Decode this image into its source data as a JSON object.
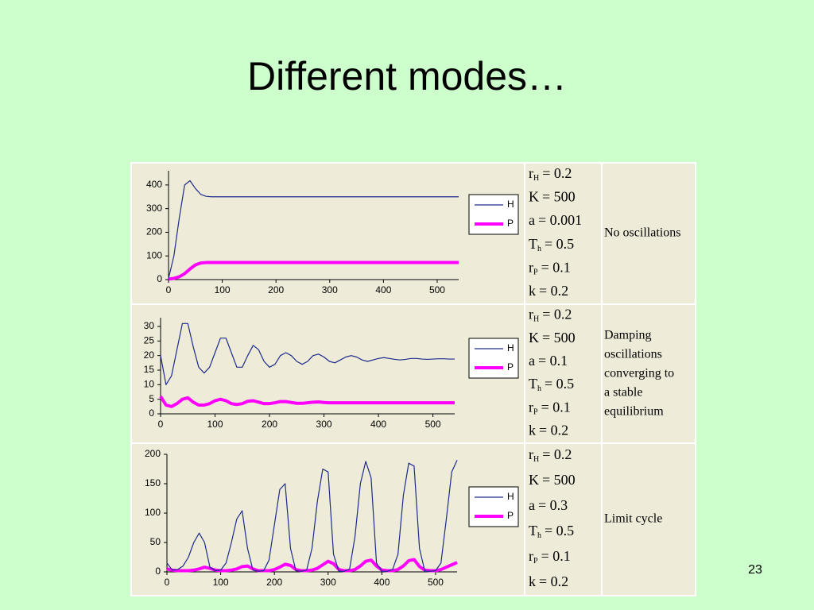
{
  "title": "Different modes…",
  "page_number": "23",
  "chart_data": [
    {
      "type": "line",
      "x": [
        0,
        10,
        20,
        30,
        40,
        50,
        60,
        70,
        80,
        90,
        100,
        110,
        120,
        130,
        140,
        150,
        160,
        170,
        180,
        190,
        200,
        210,
        220,
        230,
        240,
        250,
        260,
        270,
        280,
        290,
        300,
        310,
        320,
        330,
        340,
        350,
        360,
        370,
        380,
        390,
        400,
        410,
        420,
        430,
        440,
        450,
        460,
        470,
        480,
        490,
        500,
        510,
        520,
        530,
        540
      ],
      "xlim": [
        0,
        540
      ],
      "xticks": [
        0,
        100,
        200,
        300,
        400,
        500
      ],
      "ylim": [
        0,
        460
      ],
      "yticks": [
        0,
        100,
        200,
        300,
        400
      ],
      "series": [
        {
          "name": "H",
          "color": "#1c2a8c",
          "values": [
            5,
            100,
            260,
            400,
            418,
            385,
            360,
            352,
            350,
            350,
            350,
            350,
            350,
            350,
            350,
            350,
            350,
            350,
            350,
            350,
            350,
            350,
            350,
            350,
            350,
            350,
            350,
            350,
            350,
            350,
            350,
            350,
            350,
            350,
            350,
            350,
            350,
            350,
            350,
            350,
            350,
            350,
            350,
            350,
            350,
            350,
            350,
            350,
            350,
            350,
            350,
            350,
            350,
            350,
            350
          ]
        },
        {
          "name": "P",
          "color": "#ff00ff",
          "values": [
            2,
            5,
            12,
            25,
            45,
            62,
            70,
            72,
            72,
            72,
            72,
            72,
            72,
            72,
            72,
            72,
            72,
            72,
            72,
            72,
            72,
            72,
            72,
            72,
            72,
            72,
            72,
            72,
            72,
            72,
            72,
            72,
            72,
            72,
            72,
            72,
            72,
            72,
            72,
            72,
            72,
            72,
            72,
            72,
            72,
            72,
            72,
            72,
            72,
            72,
            72,
            72,
            72,
            72,
            72
          ]
        }
      ]
    },
    {
      "type": "line",
      "x": [
        0,
        10,
        20,
        30,
        40,
        50,
        60,
        70,
        80,
        90,
        100,
        110,
        120,
        130,
        140,
        150,
        160,
        170,
        180,
        190,
        200,
        210,
        220,
        230,
        240,
        250,
        260,
        270,
        280,
        290,
        300,
        310,
        320,
        330,
        340,
        350,
        360,
        370,
        380,
        390,
        400,
        410,
        420,
        430,
        440,
        450,
        460,
        470,
        480,
        490,
        500,
        510,
        520,
        530,
        540
      ],
      "xlim": [
        0,
        540
      ],
      "xticks": [
        0,
        100,
        200,
        300,
        400,
        500
      ],
      "ylim": [
        0,
        33
      ],
      "yticks": [
        0,
        5,
        10,
        15,
        20,
        25,
        30
      ],
      "series": [
        {
          "name": "H",
          "color": "#1c2a8c",
          "values": [
            20,
            10,
            13,
            22,
            31,
            31,
            23,
            16,
            14,
            16,
            21,
            26,
            26,
            21,
            16,
            16,
            20,
            23.5,
            22,
            18,
            16,
            17,
            20,
            21,
            20,
            18,
            17,
            18,
            20,
            20.5,
            19.5,
            18,
            17.5,
            18.5,
            19.5,
            20,
            19.5,
            18.5,
            18,
            18.5,
            19,
            19.3,
            19,
            18.7,
            18.5,
            18.7,
            19,
            19,
            18.8,
            18.7,
            18.8,
            18.9,
            18.9,
            18.8,
            18.8
          ]
        },
        {
          "name": "P",
          "color": "#ff00ff",
          "values": [
            6,
            3,
            2.5,
            3.5,
            5,
            5.5,
            4,
            3,
            3,
            3.5,
            4.5,
            5,
            4.5,
            3.5,
            3.2,
            3.5,
            4.3,
            4.5,
            4,
            3.5,
            3.5,
            3.8,
            4.2,
            4.2,
            3.9,
            3.6,
            3.6,
            3.8,
            4,
            4.1,
            3.9,
            3.8,
            3.8,
            3.8,
            3.8,
            3.8,
            3.8,
            3.8,
            3.8,
            3.8,
            3.8,
            3.8,
            3.8,
            3.8,
            3.8,
            3.8,
            3.8,
            3.8,
            3.8,
            3.8,
            3.8,
            3.8,
            3.8,
            3.8,
            3.8
          ]
        }
      ]
    },
    {
      "type": "line",
      "x": [
        0,
        10,
        20,
        30,
        40,
        50,
        60,
        70,
        80,
        90,
        100,
        110,
        120,
        130,
        140,
        150,
        160,
        170,
        180,
        190,
        200,
        210,
        220,
        230,
        240,
        250,
        260,
        270,
        280,
        290,
        300,
        310,
        320,
        330,
        340,
        350,
        360,
        370,
        380,
        390,
        400,
        410,
        420,
        430,
        440,
        450,
        460,
        470,
        480,
        490,
        500,
        510,
        520,
        530,
        540
      ],
      "xlim": [
        0,
        540
      ],
      "xticks": [
        0,
        100,
        200,
        300,
        400,
        500
      ],
      "ylim": [
        0,
        200
      ],
      "yticks": [
        0,
        50,
        100,
        150,
        200
      ],
      "series": [
        {
          "name": "H",
          "color": "#1c2a8c",
          "values": [
            15,
            3,
            4,
            10,
            25,
            50,
            66,
            50,
            8,
            2,
            3,
            15,
            50,
            90,
            104,
            40,
            3,
            1,
            2,
            20,
            80,
            140,
            150,
            40,
            2,
            1,
            3,
            40,
            120,
            175,
            170,
            30,
            1,
            1,
            5,
            60,
            150,
            188,
            160,
            15,
            1,
            1,
            4,
            30,
            130,
            185,
            180,
            40,
            1,
            1,
            2,
            15,
            90,
            170,
            190
          ]
        },
        {
          "name": "P",
          "color": "#ff00ff",
          "values": [
            5,
            3,
            2,
            2,
            2,
            3,
            5,
            8,
            6,
            3,
            2,
            2,
            3,
            5,
            9,
            10,
            5,
            2,
            2,
            2,
            4,
            8,
            13,
            11,
            4,
            2,
            2,
            3,
            6,
            12,
            18,
            14,
            4,
            2,
            2,
            4,
            10,
            18,
            20,
            10,
            3,
            2,
            2,
            4,
            10,
            19,
            21,
            9,
            3,
            2,
            2,
            4,
            8,
            12,
            16
          ]
        }
      ]
    }
  ],
  "panels": [
    {
      "params": [
        {
          "name": "r",
          "sub": "H",
          "eq": "= 0.2"
        },
        {
          "name": "K",
          "eq": "= 500"
        },
        {
          "name": "a",
          "eq": "= 0.001"
        },
        {
          "name": "T",
          "sub": "h",
          "eq": "= 0.5"
        },
        {
          "name": "r",
          "sub": "P",
          "eq": "= 0.1"
        },
        {
          "name": "k",
          "eq": "= 0.2"
        }
      ],
      "description": [
        "No oscillations"
      ]
    },
    {
      "params": [
        {
          "name": "r",
          "sub": "H",
          "eq": "= 0.2"
        },
        {
          "name": "K",
          "eq": "= 500"
        },
        {
          "name": "a",
          "eq": "= 0.1"
        },
        {
          "name": "T",
          "sub": "h",
          "eq": "= 0.5"
        },
        {
          "name": "r",
          "sub": "P",
          "eq": "= 0.1"
        },
        {
          "name": "k",
          "eq": "= 0.2"
        }
      ],
      "description": [
        "Damping",
        "oscillations",
        "converging to",
        "a stable",
        "equilibrium"
      ]
    },
    {
      "params": [
        {
          "name": "r",
          "sub": "H",
          "eq": "= 0.2"
        },
        {
          "name": "K",
          "eq": "= 500"
        },
        {
          "name": "a",
          "eq": "= 0.3"
        },
        {
          "name": "T",
          "sub": "h",
          "eq": "= 0.5"
        },
        {
          "name": "r",
          "sub": "P",
          "eq": "= 0.1"
        },
        {
          "name": "k",
          "eq": "= 0.2"
        }
      ],
      "description": [
        "Limit cycle"
      ]
    }
  ]
}
